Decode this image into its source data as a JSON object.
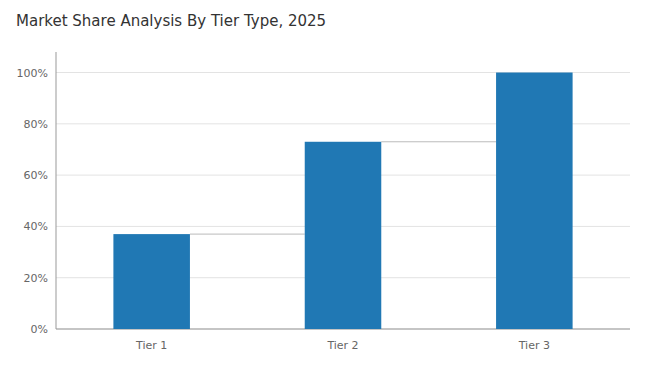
{
  "chart_data": {
    "type": "bar",
    "title": "Market Share Analysis By Tier Type, 2025",
    "categories": [
      "Tier 1",
      "Tier 2",
      "Tier 3"
    ],
    "values": [
      37,
      73,
      100
    ],
    "color": "#2078B4",
    "ylim": [
      0,
      108
    ],
    "yticks": [
      {
        "value": 0,
        "label": "0%"
      },
      {
        "value": 20,
        "label": "20%"
      },
      {
        "value": 40,
        "label": "40%"
      },
      {
        "value": 60,
        "label": "60%"
      },
      {
        "value": 80,
        "label": "80%"
      },
      {
        "value": 100,
        "label": "100%"
      }
    ],
    "grid": true
  }
}
